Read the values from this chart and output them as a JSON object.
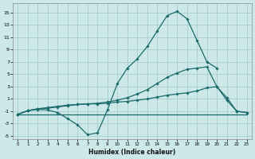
{
  "xlabel": "Humidex (Indice chaleur)",
  "bg_color": "#cce8e8",
  "grid_color": "#aacccc",
  "line_color": "#1a6b6b",
  "xlim": [
    -0.5,
    23.5
  ],
  "ylim": [
    -5.5,
    16.5
  ],
  "yticks": [
    -5,
    -3,
    -1,
    1,
    3,
    5,
    7,
    9,
    11,
    13,
    15
  ],
  "xticks": [
    0,
    1,
    2,
    3,
    4,
    5,
    6,
    7,
    8,
    9,
    10,
    11,
    12,
    13,
    14,
    15,
    16,
    17,
    18,
    19,
    20,
    21,
    22,
    23
  ],
  "series": [
    {
      "x": [
        0,
        1,
        2,
        3,
        4,
        5,
        6,
        7,
        8,
        9,
        10,
        11,
        12,
        13,
        14,
        15,
        16,
        17,
        18,
        19,
        20
      ],
      "y": [
        -1.5,
        -0.9,
        -0.7,
        -0.8,
        -1.2,
        -2.2,
        -3.2,
        -4.8,
        -4.5,
        -0.8,
        3.5,
        6.0,
        7.5,
        9.5,
        12.0,
        14.5,
        15.2,
        14.0,
        10.5,
        7.0,
        6.0
      ],
      "marker": true
    },
    {
      "x": [
        0,
        1,
        2,
        3,
        4,
        5,
        6,
        7,
        8,
        9,
        10,
        11,
        12,
        13,
        14,
        15,
        16,
        17,
        18,
        19,
        20,
        21,
        22,
        23
      ],
      "y": [
        -1.5,
        -0.9,
        -0.6,
        -0.5,
        -0.3,
        -0.1,
        0.1,
        0.2,
        0.3,
        0.5,
        0.8,
        1.2,
        1.8,
        2.5,
        3.5,
        4.5,
        5.2,
        5.8,
        6.0,
        6.2,
        3.0,
        0.8,
        -1.0,
        -1.2
      ],
      "marker": true
    },
    {
      "x": [
        0,
        1,
        2,
        3,
        4,
        5,
        6,
        7,
        8,
        9,
        10,
        11,
        12,
        13,
        14,
        15,
        16,
        17,
        18,
        19,
        20,
        21,
        22,
        23
      ],
      "y": [
        -1.5,
        -0.9,
        -0.6,
        -0.4,
        -0.2,
        0.0,
        0.1,
        0.2,
        0.2,
        0.3,
        0.5,
        0.6,
        0.8,
        1.0,
        1.3,
        1.6,
        1.8,
        2.0,
        2.3,
        2.8,
        3.0,
        1.2,
        -1.0,
        -1.2
      ],
      "marker": true
    },
    {
      "x": [
        0,
        23
      ],
      "y": [
        -1.5,
        -1.5
      ],
      "marker": false
    }
  ]
}
